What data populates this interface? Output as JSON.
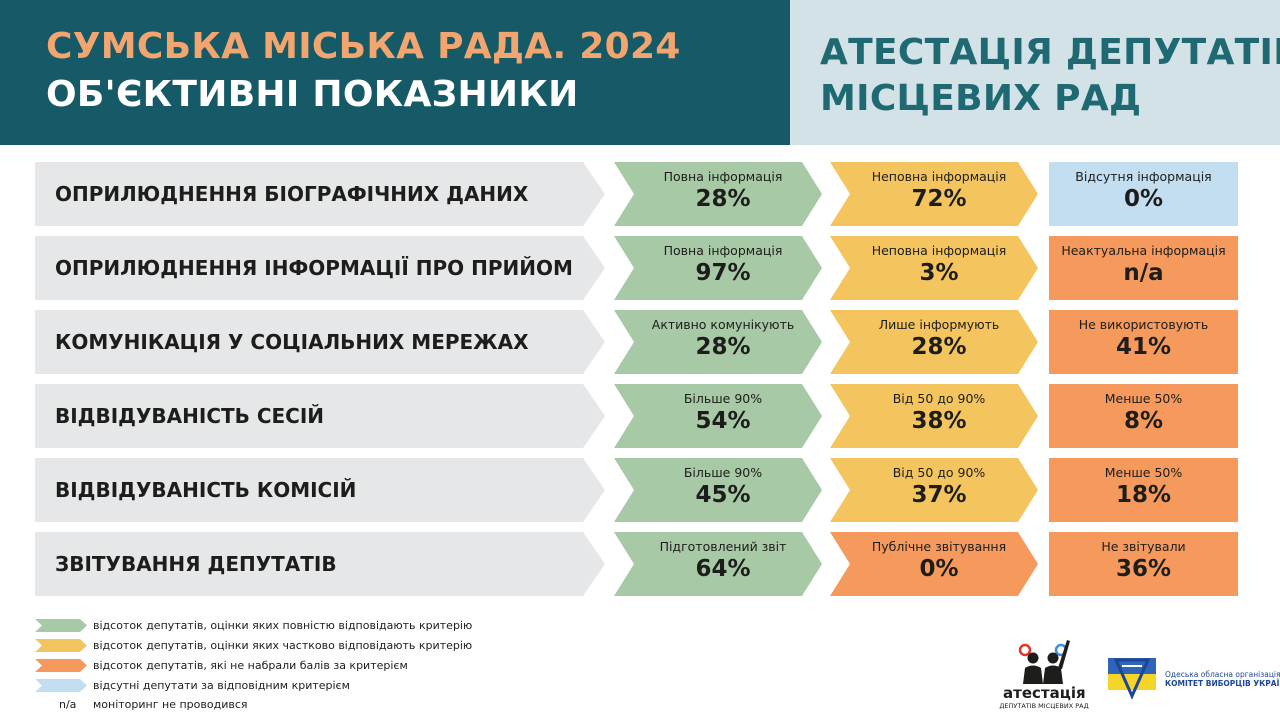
{
  "header": {
    "title_line1": "СУМСЬКА МІСЬКА РАДА. 2024",
    "title_line2": "ОБ'ЄКТИВНІ ПОКАЗНИКИ",
    "right_title_line1": "АТЕСТАЦІЯ ДЕПУТАТІВ",
    "right_title_line2": "МІСЦЕВИХ РАД"
  },
  "colors": {
    "green": "#a7c9a5",
    "yellow": "#f4c55e",
    "orange": "#f59a5c",
    "lightblue": "#c4def1",
    "criteria_bg": "#e6e7e9",
    "header_dark": "#155a66",
    "header_light": "#d2e2e7"
  },
  "rows": [
    {
      "criterion": "ОПРИЛЮДНЕННЯ БІОГРАФІЧНИХ ДАНИХ",
      "c1": {
        "label": "Повна інформація",
        "value": "28%"
      },
      "c2": {
        "label": "Неповна інформація",
        "value": "72%"
      },
      "c3": {
        "label": "Відсутня інформація",
        "value": "0%"
      }
    },
    {
      "criterion": "ОПРИЛЮДНЕННЯ ІНФОРМАЦІЇ ПРО ПРИЙОМ",
      "c1": {
        "label": "Повна інформація",
        "value": "97%"
      },
      "c2": {
        "label": "Неповна інформація",
        "value": "3%"
      },
      "c3": {
        "label": "Неактуальна інформація",
        "value": "n/a"
      }
    },
    {
      "criterion": "КОМУНІКАЦІЯ У СОЦІАЛЬНИХ МЕРЕЖАХ",
      "c1": {
        "label": "Активно комунікують",
        "value": "28%"
      },
      "c2": {
        "label": "Лише інформують",
        "value": "28%"
      },
      "c3": {
        "label": "Не використовують",
        "value": "41%"
      }
    },
    {
      "criterion": "ВІДВІДУВАНІСТЬ СЕСІЙ",
      "c1": {
        "label": "Більше 90%",
        "value": "54%"
      },
      "c2": {
        "label": "Від 50 до 90%",
        "value": "38%"
      },
      "c3": {
        "label": "Менше 50%",
        "value": "8%"
      }
    },
    {
      "criterion": "ВІДВІДУВАНІСТЬ КОМІСІЙ",
      "c1": {
        "label": "Більше 90%",
        "value": "45%"
      },
      "c2": {
        "label": "Від 50 до 90%",
        "value": "37%"
      },
      "c3": {
        "label": "Менше 50%",
        "value": "18%"
      }
    },
    {
      "criterion": "ЗВІТУВАННЯ ДЕПУТАТІВ",
      "c1": {
        "label": "Підготовлений звіт",
        "value": "64%"
      },
      "c2": {
        "label": "Публічне звітування",
        "value": "0%"
      },
      "c3": {
        "label": "Не звітували",
        "value": "36%"
      }
    }
  ],
  "legend": [
    {
      "text": "відсоток депутатів, оцінки яких повністю відповідають критерію"
    },
    {
      "text": "відсоток депутатів, оцінки яких частково відповідають критерію"
    },
    {
      "text": "відсоток депутатів, які не набрали балів за критерієм"
    },
    {
      "text": "відсутні депутати за відповідним критерієм"
    },
    {
      "symbol": "n/a",
      "text": "моніторинг не проводився"
    }
  ],
  "logos": {
    "atestatsia": "атестація",
    "atestatsia_sub": "ДЕПУТАТІВ МІСЦЕВИХ РАД",
    "org_line1": "Одеська обласна організація",
    "org_line2": "КОМІТЕТ ВИБОРЦІВ УКРАЇНИ"
  }
}
